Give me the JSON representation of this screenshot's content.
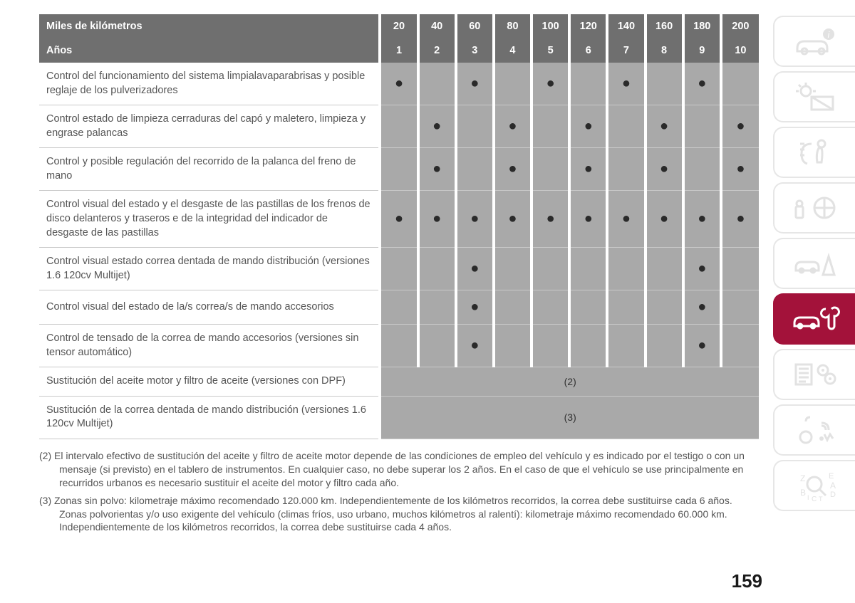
{
  "page_number": "159",
  "table": {
    "header1_label": "Miles de kilómetros",
    "header1_values": [
      "20",
      "40",
      "60",
      "80",
      "100",
      "120",
      "140",
      "160",
      "180",
      "200"
    ],
    "header2_label": "Años",
    "header2_values": [
      "1",
      "2",
      "3",
      "4",
      "5",
      "6",
      "7",
      "8",
      "9",
      "10"
    ],
    "rows": [
      {
        "desc": "Control del funcionamiento del sistema limpialavaparabrisas y posible reglaje de los pulverizadores",
        "marks": [
          1,
          0,
          1,
          0,
          1,
          0,
          1,
          0,
          1,
          0
        ]
      },
      {
        "desc": "Control estado de limpieza cerraduras del capó y maletero, limpieza y engrase palancas",
        "marks": [
          0,
          1,
          0,
          1,
          0,
          1,
          0,
          1,
          0,
          1
        ]
      },
      {
        "desc": "Control y posible regulación del recorrido de la palanca del freno de mano",
        "marks": [
          0,
          1,
          0,
          1,
          0,
          1,
          0,
          1,
          0,
          1
        ]
      },
      {
        "desc": "Control visual del estado y el desgaste de las pastillas de los frenos de disco delanteros y traseros e de la integridad del indicador de desgaste de las pastillas",
        "marks": [
          1,
          1,
          1,
          1,
          1,
          1,
          1,
          1,
          1,
          1
        ]
      },
      {
        "desc": "Control visual estado correa dentada de mando distribución (versiones 1.6 120cv Multijet)",
        "marks": [
          0,
          0,
          1,
          0,
          0,
          0,
          0,
          0,
          1,
          0
        ]
      },
      {
        "desc": "Control visual del estado de la/s correa/s de mando accesorios",
        "marks": [
          0,
          0,
          1,
          0,
          0,
          0,
          0,
          0,
          1,
          0
        ]
      },
      {
        "desc": "Control de tensado de la correa de mando accesorios (versiones sin tensor automático)",
        "marks": [
          0,
          0,
          1,
          0,
          0,
          0,
          0,
          0,
          1,
          0
        ]
      }
    ],
    "note_rows": [
      {
        "desc": "Sustitución del aceite motor y filtro de aceite (versiones con DPF)",
        "note": "(2)"
      },
      {
        "desc": "Sustitución de la correa dentada de mando distribución (versiones 1.6 120cv Multijet)",
        "note": "(3)"
      }
    ]
  },
  "footnotes": {
    "n2": "(2) El intervalo efectivo de sustitución del aceite y filtro de aceite motor depende de las condiciones de empleo del vehículo y es indicado por el testigo o con un mensaje (si previsto) en el tablero de instrumentos. En cualquier caso, no debe superar los 2 años. En el caso de que el vehículo se use principalmente en recurridos urbanos es necesario sustituir el aceite del motor y filtro cada año.",
    "n3": "(3) Zonas sin polvo: kilometraje máximo recomendado 120.000 km. Independientemente de los kilómetros recorridos, la correa debe sustituirse cada 6 años. Zonas polvorientas y/o uso exigente del vehículo (climas fríos, uso urbano, muchos kilómetros al ralentí): kilometraje máximo recomendado 60.000 km. Independientemente de los kilómetros recorridos, la correa debe sustituirse cada 4 años."
  },
  "tabs": [
    {
      "name": "info",
      "active": false
    },
    {
      "name": "lights",
      "active": false
    },
    {
      "name": "safety",
      "active": false
    },
    {
      "name": "starting",
      "active": false
    },
    {
      "name": "emergency",
      "active": false
    },
    {
      "name": "maintenance",
      "active": true
    },
    {
      "name": "specs",
      "active": false
    },
    {
      "name": "multimedia",
      "active": false
    },
    {
      "name": "index",
      "active": false
    }
  ],
  "colors": {
    "header_bg": "#6f6f6f",
    "cell_bg": "#a9a9a9",
    "active_tab": "#a3123a",
    "icon_gray": "#e2e2e2"
  }
}
